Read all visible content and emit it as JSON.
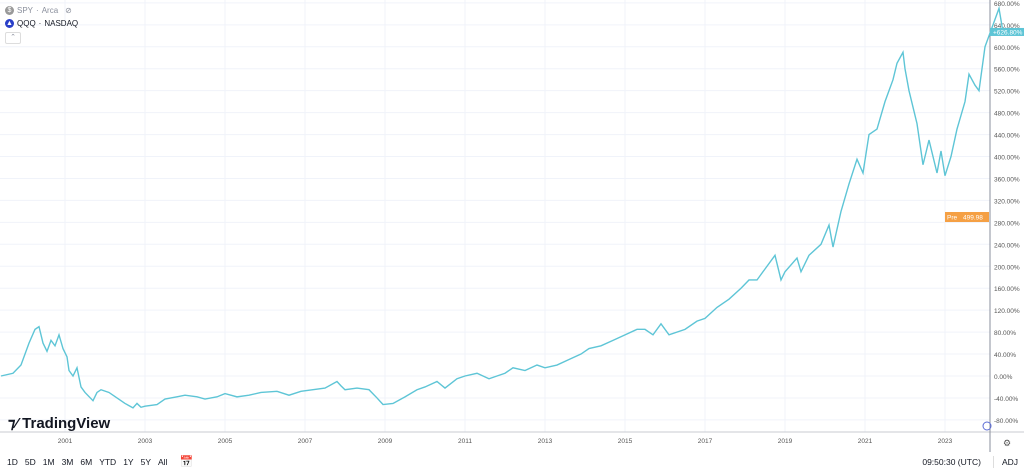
{
  "legend": {
    "items": [
      {
        "symbol": "SPY",
        "exchange": "Arca",
        "icon": "dollar-icon"
      },
      {
        "symbol": "QQQ",
        "exchange": "NASDAQ",
        "icon": "qqq-logo-icon"
      }
    ]
  },
  "brand": "TradingView",
  "colors": {
    "line": "#5ec5d6",
    "pre": "#f5a044",
    "grid": "#f0f3fa"
  },
  "toolbar": {
    "ranges": [
      "1D",
      "5D",
      "1M",
      "3M",
      "6M",
      "YTD",
      "1Y",
      "5Y",
      "All"
    ],
    "time": "09:50:30 (UTC)",
    "adj": "ADJ"
  },
  "chart_data": {
    "type": "line",
    "xticks": [
      "2001",
      "2003",
      "2005",
      "2007",
      "2009",
      "2011",
      "2013",
      "2015",
      "2017",
      "2019",
      "2021",
      "2023"
    ],
    "yticks": [
      "680.00%",
      "640.00%",
      "600.00%",
      "560.00%",
      "520.00%",
      "480.00%",
      "440.00%",
      "400.00%",
      "360.00%",
      "320.00%",
      "280.00%",
      "240.00%",
      "200.00%",
      "160.00%",
      "120.00%",
      "80.00%",
      "40.00%",
      "0.00%",
      "-40.00%",
      "-80.00%"
    ],
    "ylim": [
      -80,
      680
    ],
    "last_label": "+626.80%",
    "pre_label": "Pre",
    "pre_value": "499.98",
    "series": [
      {
        "x": [
          1999.4,
          1999.7,
          1999.9,
          2000.1,
          2000.25,
          2000.35,
          2000.45,
          2000.55,
          2000.65,
          2000.75,
          2000.85,
          2000.95,
          2001.05,
          2001.1,
          2001.2,
          2001.3,
          2001.4,
          2001.5,
          2001.7,
          2001.8,
          2001.9,
          2002.1,
          2002.3,
          2002.5,
          2002.7,
          2002.8,
          2002.9,
          2003.0,
          2003.3,
          2003.5,
          2003.8,
          2004.0,
          2004.3,
          2004.5,
          2004.8,
          2005.0,
          2005.3,
          2005.6,
          2005.9,
          2006.3,
          2006.6,
          2006.9,
          2007.2,
          2007.5,
          2007.8,
          2007.9,
          2008.0,
          2008.3,
          2008.6,
          2008.8,
          2008.95,
          2009.2,
          2009.5,
          2009.8,
          2010.0,
          2010.3,
          2010.5,
          2010.8,
          2011.0,
          2011.3,
          2011.6,
          2011.8,
          2012.0,
          2012.2,
          2012.5,
          2012.8,
          2013.0,
          2013.3,
          2013.6,
          2013.9,
          2014.1,
          2014.4,
          2014.7,
          2015.0,
          2015.3,
          2015.5,
          2015.7,
          2015.9,
          2016.1,
          2016.5,
          2016.8,
          2017.0,
          2017.3,
          2017.6,
          2017.9,
          2018.1,
          2018.3,
          2018.5,
          2018.75,
          2018.9,
          2019.0,
          2019.3,
          2019.4,
          2019.6,
          2019.9,
          2020.1,
          2020.2,
          2020.4,
          2020.6,
          2020.8,
          2020.95,
          2021.1,
          2021.3,
          2021.5,
          2021.7,
          2021.8,
          2021.95,
          2022.0,
          2022.1,
          2022.3,
          2022.45,
          2022.6,
          2022.8,
          2022.9,
          2023.0,
          2023.15,
          2023.3,
          2023.5,
          2023.6,
          2023.75,
          2023.85,
          2024.0,
          2024.2,
          2024.35,
          2024.45
        ],
        "y": [
          0,
          5,
          20,
          60,
          85,
          90,
          60,
          45,
          65,
          55,
          75,
          50,
          35,
          10,
          0,
          15,
          -20,
          -30,
          -45,
          -30,
          -25,
          -30,
          -40,
          -50,
          -58,
          -50,
          -57,
          -55,
          -52,
          -42,
          -38,
          -35,
          -38,
          -42,
          -38,
          -32,
          -38,
          -35,
          -30,
          -28,
          -35,
          -28,
          -25,
          -22,
          -10,
          -18,
          -25,
          -22,
          -25,
          -40,
          -52,
          -50,
          -38,
          -25,
          -20,
          -10,
          -22,
          -5,
          0,
          5,
          -5,
          0,
          5,
          15,
          10,
          20,
          15,
          20,
          30,
          40,
          50,
          55,
          65,
          75,
          85,
          85,
          75,
          95,
          75,
          85,
          100,
          105,
          125,
          140,
          160,
          175,
          175,
          195,
          220,
          175,
          190,
          215,
          190,
          220,
          240,
          275,
          235,
          300,
          350,
          395,
          370,
          440,
          450,
          500,
          540,
          570,
          590,
          560,
          520,
          460,
          385,
          430,
          370,
          410,
          365,
          400,
          450,
          500,
          550,
          530,
          520,
          600,
          640,
          670,
          627
        ]
      }
    ]
  }
}
